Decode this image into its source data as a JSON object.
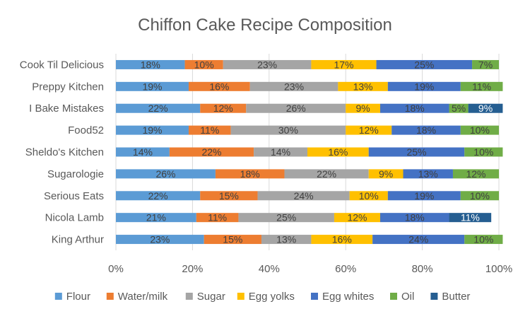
{
  "chart_data": {
    "type": "bar",
    "orientation": "horizontal",
    "stacked": true,
    "percent_stacked": true,
    "title": "Chiffon Cake Recipe Composition",
    "xlabel": "",
    "ylabel": "",
    "xlim": [
      0,
      100
    ],
    "x_ticks": [
      "0%",
      "20%",
      "40%",
      "60%",
      "80%",
      "100%"
    ],
    "x_tick_values": [
      0,
      20,
      40,
      60,
      80,
      100
    ],
    "grid": true,
    "legend_position": "bottom",
    "categories": [
      "Cook Til Delicious",
      "Preppy Kitchen",
      "I Bake Mistakes",
      "Food52",
      "Sheldo's Kitchen",
      "Sugarologie",
      "Serious Eats",
      "Nicola Lamb",
      "King Arthur"
    ],
    "series": [
      {
        "name": "Flour",
        "color": "#5B9BD5",
        "values": [
          18,
          19,
          22,
          19,
          14,
          26,
          22,
          21,
          23
        ],
        "labels": [
          "18%",
          "19%",
          "22%",
          "19%",
          "14%",
          "26%",
          "22%",
          "21%",
          "23%"
        ]
      },
      {
        "name": "Water/milk",
        "color": "#ED7D31",
        "values": [
          10,
          16,
          12,
          11,
          22,
          18,
          15,
          11,
          15
        ],
        "labels": [
          "10%",
          "16%",
          "12%",
          "11%",
          "22%",
          "18%",
          "15%",
          "11%",
          "15%"
        ]
      },
      {
        "name": "Sugar",
        "color": "#A5A5A5",
        "values": [
          23,
          23,
          26,
          30,
          14,
          22,
          24,
          25,
          13
        ],
        "labels": [
          "23%",
          "23%",
          "26%",
          "30%",
          "14%",
          "22%",
          "24%",
          "25%",
          "13%"
        ]
      },
      {
        "name": "Egg yolks",
        "color": "#FFC000",
        "values": [
          17,
          13,
          9,
          12,
          16,
          9,
          10,
          12,
          16
        ],
        "labels": [
          "17%",
          "13%",
          "9%",
          "12%",
          "16%",
          "9%",
          "10%",
          "12%",
          "16%"
        ]
      },
      {
        "name": "Egg whites",
        "color": "#4472C4",
        "values": [
          25,
          19,
          18,
          18,
          25,
          13,
          19,
          18,
          24
        ],
        "labels": [
          "25%",
          "19%",
          "18%",
          "18%",
          "25%",
          "13%",
          "19%",
          "18%",
          "24%"
        ]
      },
      {
        "name": "Oil",
        "color": "#70AD47",
        "values": [
          7,
          11,
          5,
          10,
          10,
          12,
          10,
          0,
          10
        ],
        "labels": [
          "7%",
          "11%",
          "5%",
          "10%",
          "10%",
          "12%",
          "10%",
          "",
          "10%"
        ]
      },
      {
        "name": "Butter",
        "color": "#255E91",
        "values": [
          0,
          0,
          9,
          0,
          0,
          0,
          0,
          11,
          0
        ],
        "labels": [
          "",
          "",
          "9%",
          "",
          "",
          "",
          "",
          "11%",
          ""
        ]
      }
    ]
  }
}
